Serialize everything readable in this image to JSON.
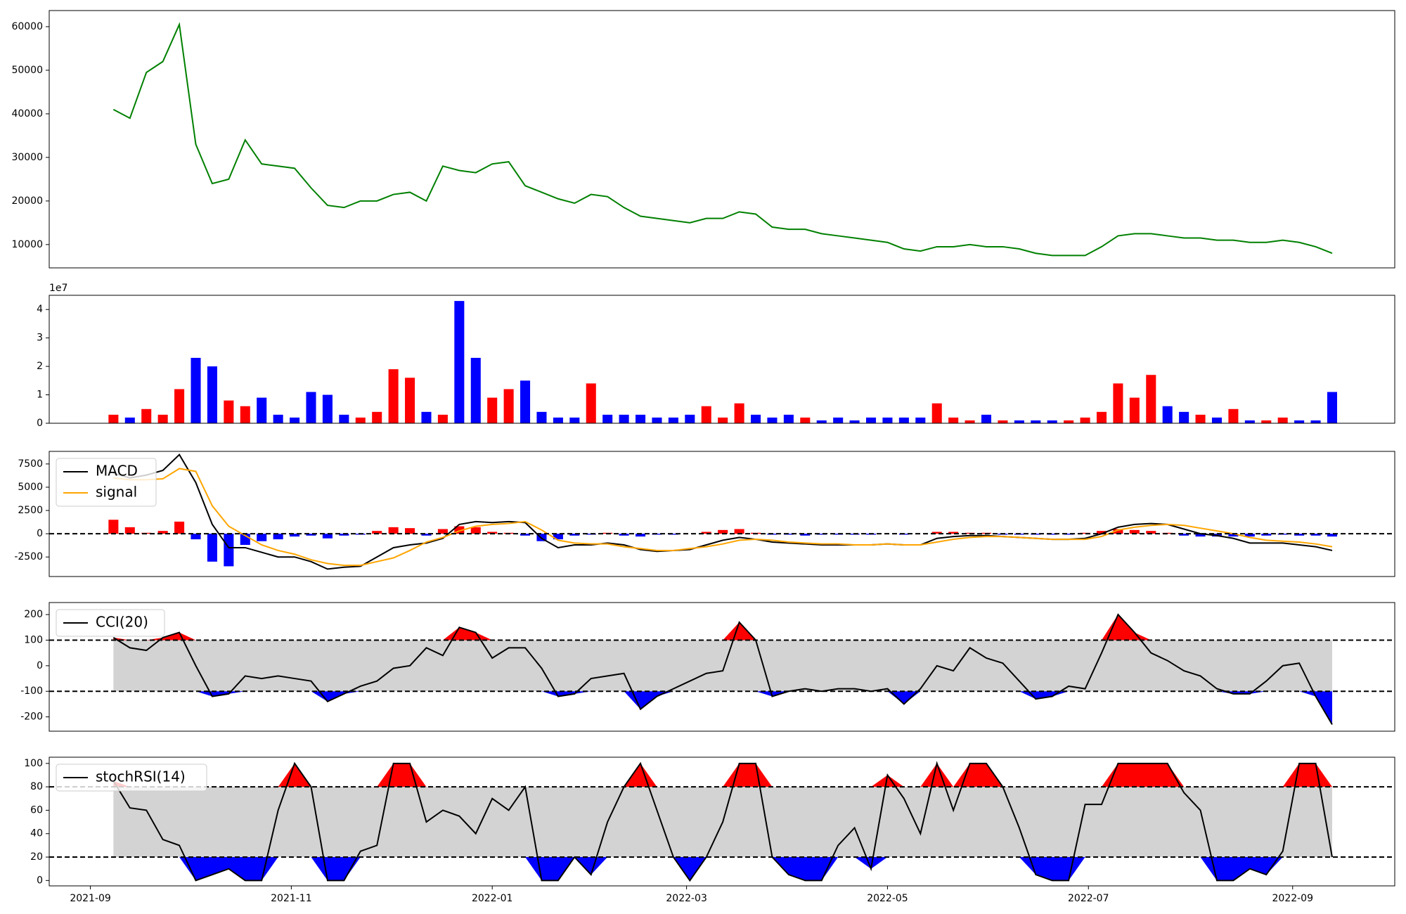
{
  "chart_data": [
    {
      "type": "line",
      "x": [
        7,
        12,
        17,
        22,
        27,
        32,
        37,
        42,
        47,
        52,
        57,
        62,
        67,
        72,
        77,
        82,
        87,
        92,
        97,
        102,
        107,
        112,
        117,
        122,
        127,
        132,
        137,
        142,
        147,
        152,
        157,
        162,
        167,
        172,
        177,
        182,
        187,
        192,
        197,
        202,
        207,
        212,
        217,
        222,
        227,
        232,
        237,
        242,
        247,
        252,
        257,
        262,
        267,
        272,
        277,
        282,
        287,
        292,
        297,
        302,
        307,
        312,
        317,
        322,
        327,
        332,
        337,
        342,
        347,
        352,
        357,
        362,
        367,
        372,
        377
      ],
      "xlim": [
        -12.5,
        396
      ],
      "ylim": [
        4650,
        63700
      ],
      "yticks": [
        10000,
        20000,
        30000,
        40000,
        50000,
        60000
      ],
      "series": [
        {
          "color": "green",
          "values": [
            41000,
            39000,
            49500,
            52000,
            60500,
            33000,
            24000,
            25000,
            34000,
            28500,
            28000,
            27500,
            23000,
            19000,
            18500,
            20000,
            20000,
            21500,
            22000,
            20000,
            28000,
            27000,
            26500,
            28500,
            29000,
            23500,
            22000,
            20500,
            19500,
            21500,
            21000,
            18500,
            16500,
            16000,
            15500,
            15000,
            16000,
            16000,
            17500,
            17000,
            14000,
            13500,
            13500,
            12500,
            12000,
            11500,
            11000,
            10500,
            9000,
            8500,
            9500,
            9500,
            10000,
            9500,
            9500,
            9000,
            8000,
            7500,
            7500,
            7500,
            9500,
            12000,
            12500,
            12500,
            12000,
            11500,
            11500,
            11000,
            11000,
            10500,
            10500,
            11000,
            10500,
            9500,
            8000
          ]
        }
      ]
    },
    {
      "type": "bar",
      "x": [
        7,
        12,
        17,
        22,
        27,
        32,
        37,
        42,
        47,
        52,
        57,
        62,
        67,
        72,
        77,
        82,
        87,
        92,
        97,
        102,
        107,
        112,
        117,
        122,
        127,
        132,
        137,
        142,
        147,
        152,
        157,
        162,
        167,
        172,
        177,
        182,
        187,
        192,
        197,
        202,
        207,
        212,
        217,
        222,
        227,
        232,
        237,
        242,
        247,
        252,
        257,
        262,
        267,
        272,
        277,
        282,
        287,
        292,
        297,
        302,
        307,
        312,
        317,
        322,
        327,
        332,
        337,
        342,
        347,
        352,
        357,
        362,
        367,
        372,
        377
      ],
      "xlim": [
        -12.5,
        396
      ],
      "ylim": [
        0,
        4.5
      ],
      "yticks": [
        0,
        1,
        2,
        3,
        4
      ],
      "offset_text": "1e7",
      "up_color": "red",
      "down_color": "blue",
      "series": [
        {
          "values": [
            0.3,
            0.2,
            0.5,
            0.3,
            1.2,
            2.3,
            2.0,
            0.8,
            0.6,
            0.9,
            0.3,
            0.2,
            1.1,
            1.0,
            0.3,
            0.2,
            0.4,
            1.9,
            1.6,
            0.4,
            0.3,
            4.3,
            2.3,
            0.9,
            1.2,
            1.5,
            0.4,
            0.2,
            0.2,
            1.4,
            0.3,
            0.3,
            0.3,
            0.2,
            0.2,
            0.3,
            0.6,
            0.2,
            0.7,
            0.3,
            0.2,
            0.3,
            0.2,
            0.1,
            0.2,
            0.1,
            0.2,
            0.2,
            0.2,
            0.2,
            0.7,
            0.2,
            0.1,
            0.3,
            0.1,
            0.1,
            0.1,
            0.1,
            0.1,
            0.2,
            0.4,
            1.4,
            0.9,
            1.7,
            0.6,
            0.4,
            0.3,
            0.2,
            0.5,
            0.1,
            0.1,
            0.2,
            0.1,
            0.1,
            1.1
          ]
        }
      ]
    },
    {
      "type": "line",
      "x": [
        7,
        12,
        17,
        22,
        27,
        32,
        37,
        42,
        47,
        52,
        57,
        62,
        67,
        72,
        77,
        82,
        87,
        92,
        97,
        102,
        107,
        112,
        117,
        122,
        127,
        132,
        137,
        142,
        147,
        152,
        157,
        162,
        167,
        172,
        177,
        182,
        187,
        192,
        197,
        202,
        207,
        212,
        217,
        222,
        227,
        232,
        237,
        242,
        247,
        252,
        257,
        262,
        267,
        272,
        277,
        282,
        287,
        292,
        297,
        302,
        307,
        312,
        317,
        322,
        327,
        332,
        337,
        342,
        347,
        352,
        357,
        362,
        367,
        372,
        377
      ],
      "xlim": [
        -12.5,
        396
      ],
      "ylim": [
        -4600,
        8850
      ],
      "yticks": [
        -2500,
        0,
        2500,
        5000,
        7500
      ],
      "hlines": [
        0
      ],
      "legend": "upper left",
      "up_color": "red",
      "down_color": "blue",
      "series": [
        {
          "type": "bar",
          "values": [
            1500,
            700,
            100,
            300,
            1300,
            -600,
            -3000,
            -3500,
            -1200,
            -800,
            -600,
            -300,
            -200,
            -500,
            -200,
            -100,
            300,
            700,
            600,
            -200,
            500,
            800,
            700,
            200,
            100,
            -200,
            -800,
            -600,
            -200,
            -100,
            100,
            -200,
            -300,
            -100,
            -100,
            0,
            200,
            400,
            500,
            100,
            -100,
            -100,
            -200,
            -100,
            -100,
            -100,
            -100,
            0,
            -100,
            0,
            200,
            200,
            100,
            100,
            -100,
            -100,
            -100,
            -100,
            -100,
            100,
            300,
            500,
            400,
            300,
            100,
            -200,
            -300,
            -300,
            -300,
            -300,
            -200,
            -100,
            -200,
            -200,
            -300
          ]
        },
        {
          "name": "MACD",
          "color": "black",
          "values": [
            6500,
            6000,
            6300,
            6800,
            8500,
            5500,
            1000,
            -1500,
            -1500,
            -2000,
            -2500,
            -2500,
            -3000,
            -3800,
            -3600,
            -3500,
            -2500,
            -1500,
            -1200,
            -1000,
            -500,
            1000,
            1300,
            1200,
            1300,
            1200,
            -500,
            -1500,
            -1200,
            -1200,
            -1000,
            -1200,
            -1700,
            -1900,
            -1800,
            -1700,
            -1200,
            -700,
            -400,
            -600,
            -900,
            -1000,
            -1100,
            -1200,
            -1200,
            -1200,
            -1200,
            -1100,
            -1200,
            -1200,
            -500,
            -300,
            -200,
            -200,
            -300,
            -400,
            -500,
            -600,
            -600,
            -500,
            0,
            700,
            1000,
            1100,
            1000,
            500,
            0,
            -200,
            -500,
            -1000,
            -1000,
            -1000,
            -1200,
            -1400,
            -1800
          ]
        },
        {
          "name": "signal",
          "color": "orange",
          "values": [
            6000,
            5800,
            5800,
            5900,
            7000,
            6700,
            3000,
            800,
            -200,
            -1200,
            -1800,
            -2200,
            -2800,
            -3200,
            -3400,
            -3400,
            -3000,
            -2600,
            -1800,
            -900,
            -400,
            300,
            800,
            1000,
            1100,
            1300,
            400,
            -700,
            -1000,
            -1100,
            -1100,
            -1400,
            -1600,
            -1800,
            -1800,
            -1600,
            -1400,
            -1100,
            -700,
            -600,
            -700,
            -900,
            -1000,
            -1100,
            -1100,
            -1200,
            -1200,
            -1100,
            -1200,
            -1200,
            -900,
            -600,
            -400,
            -300,
            -300,
            -400,
            -500,
            -600,
            -600,
            -600,
            -300,
            400,
            700,
            900,
            1000,
            900,
            600,
            300,
            0,
            -400,
            -700,
            -800,
            -900,
            -1100,
            -1400
          ]
        }
      ]
    },
    {
      "type": "line",
      "x": [
        7,
        12,
        17,
        22,
        27,
        32,
        37,
        42,
        47,
        52,
        57,
        62,
        67,
        72,
        77,
        82,
        87,
        92,
        97,
        102,
        107,
        112,
        117,
        122,
        127,
        132,
        137,
        142,
        147,
        152,
        157,
        162,
        167,
        172,
        177,
        182,
        187,
        192,
        197,
        202,
        207,
        212,
        217,
        222,
        227,
        232,
        237,
        242,
        247,
        252,
        257,
        262,
        267,
        272,
        277,
        282,
        287,
        292,
        297,
        302,
        307,
        312,
        317,
        322,
        327,
        332,
        337,
        342,
        347,
        352,
        357,
        362,
        367,
        372,
        377
      ],
      "xlim": [
        -12.5,
        396
      ],
      "ylim": [
        -256,
        247
      ],
      "yticks": [
        -200,
        -100,
        0,
        100,
        200
      ],
      "hlines": [
        100,
        -100
      ],
      "legend": "upper left",
      "band_colors": {
        "inside": "lightgray",
        "above": "red",
        "below": "blue"
      },
      "series": [
        {
          "name": "CCI(20)",
          "color": "black",
          "values": [
            110,
            70,
            60,
            110,
            130,
            0,
            -120,
            -110,
            -40,
            -50,
            -40,
            -50,
            -60,
            -140,
            -110,
            -80,
            -60,
            -10,
            0,
            70,
            40,
            150,
            130,
            30,
            70,
            70,
            -10,
            -120,
            -110,
            -50,
            -40,
            -30,
            -170,
            -120,
            -90,
            -60,
            -30,
            -20,
            170,
            100,
            -120,
            -100,
            -90,
            -100,
            -90,
            -90,
            -100,
            -90,
            -150,
            -90,
            0,
            -20,
            70,
            30,
            10,
            -60,
            -130,
            -120,
            -80,
            -90,
            50,
            200,
            130,
            50,
            20,
            -20,
            -40,
            -90,
            -110,
            -110,
            -60,
            0,
            10,
            -120,
            -230
          ]
        }
      ]
    },
    {
      "type": "line",
      "x": [
        7,
        12,
        17,
        22,
        27,
        32,
        37,
        42,
        47,
        52,
        57,
        62,
        67,
        72,
        77,
        82,
        87,
        92,
        97,
        102,
        107,
        112,
        117,
        122,
        127,
        132,
        137,
        142,
        147,
        152,
        157,
        162,
        167,
        172,
        177,
        182,
        187,
        192,
        197,
        202,
        207,
        212,
        217,
        222,
        227,
        232,
        237,
        242,
        247,
        252,
        257,
        262,
        267,
        272,
        277,
        282,
        287,
        292,
        297,
        302,
        307,
        312,
        317,
        322,
        327,
        332,
        337,
        342,
        347,
        352,
        357,
        362,
        367,
        372,
        377
      ],
      "xlim": [
        -12.5,
        396
      ],
      "ylim": [
        -4.6,
        105.3
      ],
      "yticks": [
        0,
        20,
        40,
        60,
        80,
        100
      ],
      "hlines": [
        80,
        20
      ],
      "legend": "upper left",
      "band_colors": {
        "inside": "lightgray",
        "above": "red",
        "below": "blue"
      },
      "xticks": [
        {
          "value": 0,
          "label": "2021-09"
        },
        {
          "value": 61,
          "label": "2021-11"
        },
        {
          "value": 122,
          "label": "2022-01"
        },
        {
          "value": 181,
          "label": "2022-03"
        },
        {
          "value": 242,
          "label": "2022-05"
        },
        {
          "value": 303,
          "label": "2022-07"
        },
        {
          "value": 365,
          "label": "2022-09"
        }
      ],
      "series": [
        {
          "name": "stochRSI(14)",
          "color": "black",
          "values": [
            85,
            62,
            60,
            35,
            30,
            0,
            5,
            10,
            0,
            0,
            60,
            100,
            80,
            0,
            0,
            25,
            30,
            100,
            100,
            50,
            60,
            55,
            40,
            70,
            60,
            80,
            0,
            0,
            20,
            5,
            50,
            80,
            100,
            60,
            20,
            0,
            20,
            50,
            100,
            100,
            20,
            5,
            0,
            0,
            30,
            45,
            10,
            90,
            70,
            40,
            100,
            60,
            100,
            100,
            80,
            45,
            5,
            0,
            0,
            65,
            65,
            100,
            100,
            100,
            100,
            75,
            60,
            0,
            0,
            10,
            5,
            25,
            100,
            100,
            20
          ]
        }
      ]
    }
  ]
}
